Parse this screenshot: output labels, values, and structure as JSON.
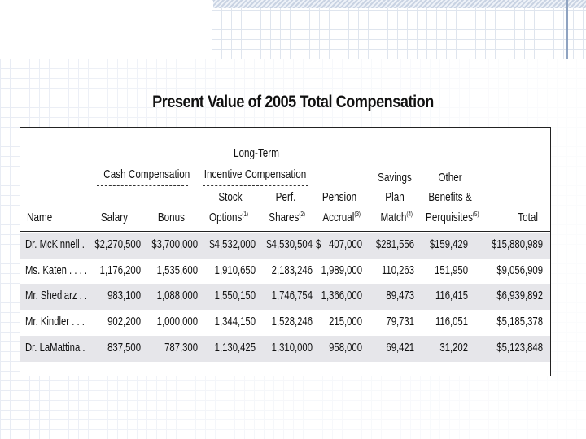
{
  "title": "Present Value of 2005 Total Compensation",
  "groups": {
    "cash": "Cash Compensation",
    "lti_line1": "Long-Term",
    "lti_line2": "Incentive Compensation",
    "savings_line1": "Savings",
    "savings_line2": "Plan",
    "other_line1": "Other",
    "other_line2": "Benefits &",
    "stock_line1": "Stock",
    "perf_line1": "Perf.",
    "pension_line1": "Pension"
  },
  "columns": {
    "name": "Name",
    "salary": "Salary",
    "bonus": "Bonus",
    "stock": "Options",
    "stock_sup": "(1)",
    "perf": "Shares",
    "perf_sup": "(2)",
    "pension": "Accrual",
    "pension_sup": "(3)",
    "savings": "Match",
    "savings_sup": "(4)",
    "other": "Perquisites",
    "other_sup": "(5)",
    "total": "Total"
  },
  "rows": [
    {
      "name": "Dr. McKinnell .",
      "salary": "$2,270,500",
      "bonus": "$3,700,000",
      "stock": "$4,532,000",
      "perf": "$4,530,504",
      "pension_cur": "$",
      "pension": "407,000",
      "savings": "$281,556",
      "other": "$159,429",
      "total": "$15,880,989"
    },
    {
      "name": "Ms. Katen . . . .",
      "salary": "1,176,200",
      "bonus": "1,535,600",
      "stock": "1,910,650",
      "perf": "2,183,246",
      "pension_cur": "",
      "pension": "1,989,000",
      "savings": "110,263",
      "other": "151,950",
      "total": "$9,056,909"
    },
    {
      "name": "Mr. Shedlarz . .",
      "salary": "983,100",
      "bonus": "1,088,000",
      "stock": "1,550,150",
      "perf": "1,746,754",
      "pension_cur": "",
      "pension": "1,366,000",
      "savings": "89,473",
      "other": "116,415",
      "total": "$6,939,892"
    },
    {
      "name": "Mr. Kindler . . .",
      "salary": "902,200",
      "bonus": "1,000,000",
      "stock": "1,344,150",
      "perf": "1,528,246",
      "pension_cur": "",
      "pension": "215,000",
      "savings": "79,731",
      "other": "116,051",
      "total": "$5,185,378"
    },
    {
      "name": "Dr. LaMattina .",
      "salary": "837,500",
      "bonus": "787,300",
      "stock": "1,130,425",
      "perf": "1,310,000",
      "pension_cur": "",
      "pension": "958,000",
      "savings": "69,421",
      "other": "31,202",
      "total": "$5,123,848"
    }
  ]
}
